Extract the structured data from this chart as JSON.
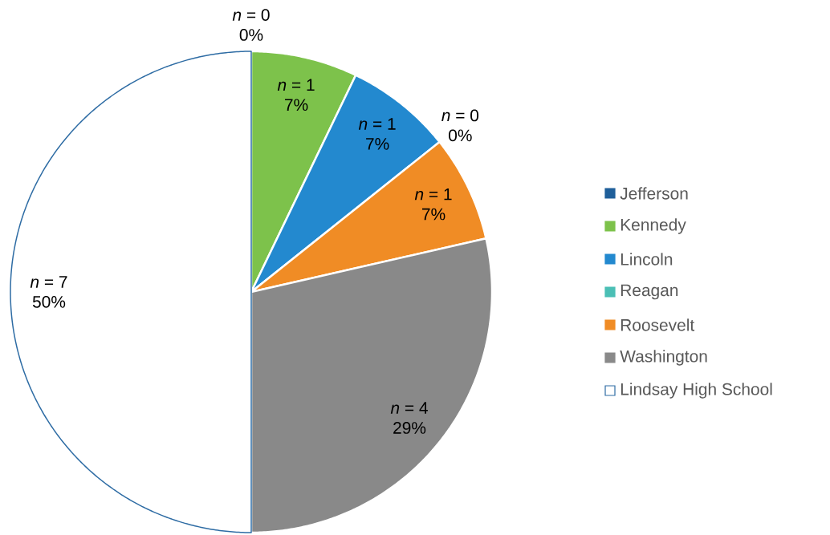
{
  "chart_data": {
    "type": "pie",
    "categories": [
      "Jefferson",
      "Kennedy",
      "Lincoln",
      "Reagan",
      "Roosevelt",
      "Washington",
      "Lindsay High School"
    ],
    "values": [
      0,
      1,
      1,
      0,
      1,
      4,
      7
    ],
    "colors": [
      "#1f5f9a",
      "#7dc24b",
      "#2389cf",
      "#4bbfb5",
      "#f08c25",
      "#898989",
      "#ffffff"
    ],
    "value_labels": [
      "*n* = 0",
      "*n* = 1",
      "*n* = 1",
      "*n* = 0",
      "*n* = 1",
      "*n* = 4",
      "*n* = 7"
    ],
    "annotations": [
      "0%",
      "7%",
      "7%",
      "0%",
      "7%",
      "29%",
      "50%"
    ],
    "legend": "right"
  }
}
